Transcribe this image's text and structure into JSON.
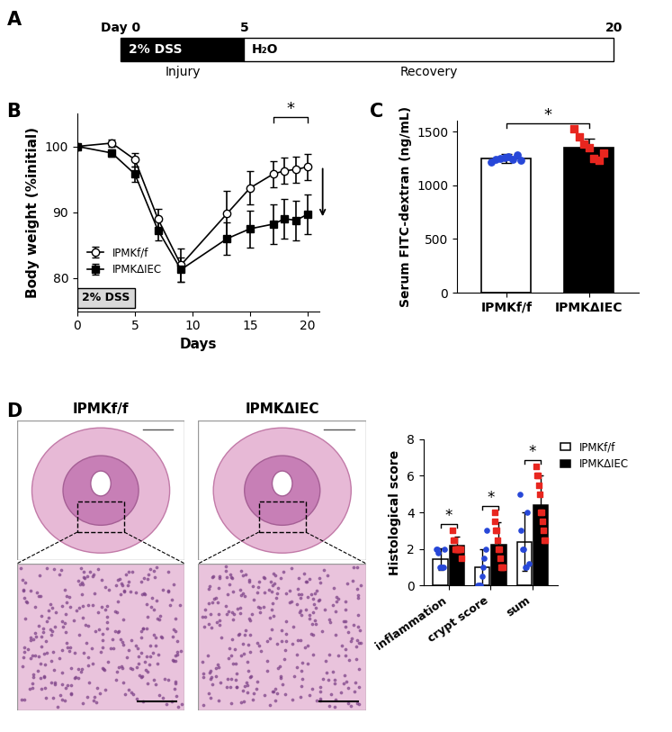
{
  "panel_labels": [
    "A",
    "B",
    "C",
    "D"
  ],
  "timeline": {
    "ticks": [
      {
        "value": 0,
        "label": "Day 0"
      },
      5,
      20
    ],
    "segments": [
      {
        "label": "2% DSS",
        "start": 0,
        "end": 5,
        "color": "#000000"
      },
      {
        "label": "H₂O",
        "start": 5,
        "end": 20,
        "color": "#ffffff"
      }
    ],
    "phases": [
      {
        "label": "Injury",
        "start": 0,
        "end": 5
      },
      {
        "label": "Recovery",
        "start": 5,
        "end": 20
      }
    ]
  },
  "histology": {
    "titles": [
      "IPMKf/f",
      "IPMKΔIEC"
    ]
  },
  "chart_data": [
    {
      "type": "line",
      "x": [
        0,
        3,
        5,
        7,
        9,
        13,
        15,
        17,
        18,
        19,
        20
      ],
      "xlabel": "Days",
      "ylabel": "Body weight (%initial)",
      "xlim": [
        0,
        21
      ],
      "xticks": [
        0,
        5,
        10,
        15,
        20
      ],
      "ylim": [
        75,
        105
      ],
      "yticks": [
        80,
        90,
        100
      ],
      "legend": "lower left",
      "series": [
        {
          "name": "IPMKf/f",
          "color": "#000000",
          "marker": "circle_open",
          "values": [
            100,
            100.5,
            98,
            89,
            82,
            89.8,
            93.7,
            95.8,
            96.3,
            96.5,
            96.9
          ],
          "errors": [
            0,
            0.5,
            1,
            1.5,
            2.5,
            3.5,
            2.5,
            2,
            2,
            2,
            2
          ]
        },
        {
          "name": "IPMKΔIEC",
          "color": "#000000",
          "marker": "square",
          "values": [
            100,
            99,
            95.8,
            87.3,
            81.3,
            86,
            87.5,
            88.2,
            89,
            88.8,
            89.7
          ],
          "errors": [
            0,
            0.5,
            1.2,
            1.5,
            1.8,
            2.5,
            2.8,
            3,
            3,
            3,
            3
          ]
        }
      ],
      "shaded_box": {
        "label": "2% DSS",
        "start": 0,
        "end": 5
      },
      "annotations": [
        {
          "text": "*",
          "from": 17,
          "to": 20
        }
      ]
    },
    {
      "type": "bar",
      "categories": [
        "IPMKf/f",
        "IPMKΔIEC"
      ],
      "values": [
        1250,
        1350
      ],
      "errors": [
        40,
        80
      ],
      "colors": [
        "#ffffff",
        "#000000"
      ],
      "points": [
        [
          1220,
          1240,
          1250,
          1260,
          1270,
          1240,
          1280,
          1230
        ],
        [
          1530,
          1450,
          1380,
          1350,
          1250,
          1230,
          1300
        ]
      ],
      "ylabel": "Serum FITC-dextran (ng/mL)",
      "ylim": [
        0,
        1600
      ],
      "yticks": [
        0,
        500,
        1000,
        1500
      ],
      "annotations": [
        {
          "text": "*",
          "from": 0,
          "to": 1
        }
      ]
    },
    {
      "type": "bar",
      "categories": [
        "inflammation",
        "crypt score",
        "sum"
      ],
      "ylabel": "Histological score",
      "ylim": [
        0,
        8
      ],
      "yticks": [
        0,
        2,
        4,
        6,
        8
      ],
      "legend": "upper right",
      "series": [
        {
          "name": "IPMKf/f",
          "color": "#ffffff",
          "values": [
            1.45,
            1.0,
            2.4
          ],
          "errors": [
            0.6,
            1.0,
            1.6
          ],
          "points": [
            [
              2.0,
              2.0,
              1.8,
              1.0,
              1.0,
              1.0,
              1.0,
              2.0
            ],
            [
              0,
              0,
              0,
              0.5,
              1,
              1.5,
              2,
              3
            ],
            [
              5.0,
              3,
              2,
              2,
              1,
              1,
              4,
              1.2
            ]
          ]
        },
        {
          "name": "IPMKΔIEC",
          "color": "#000000",
          "values": [
            2.2,
            2.25,
            4.4
          ],
          "errors": [
            0.5,
            1.2,
            1.6
          ],
          "points": [
            [
              3,
              2.5,
              2.5,
              2,
              2,
              2,
              2,
              2,
              2,
              2,
              1.5
            ],
            [
              4,
              3.5,
              3,
              3,
              2.5,
              2,
              2,
              1.5,
              1,
              1,
              1
            ],
            [
              6.5,
              6,
              6,
              5.5,
              5,
              4,
              4,
              3.5,
              3,
              2.5,
              2.5
            ]
          ]
        }
      ],
      "annotations": [
        {
          "text": "*",
          "category": "inflammation"
        },
        {
          "text": "*",
          "category": "crypt score"
        },
        {
          "text": "*",
          "category": "sum"
        }
      ]
    }
  ]
}
